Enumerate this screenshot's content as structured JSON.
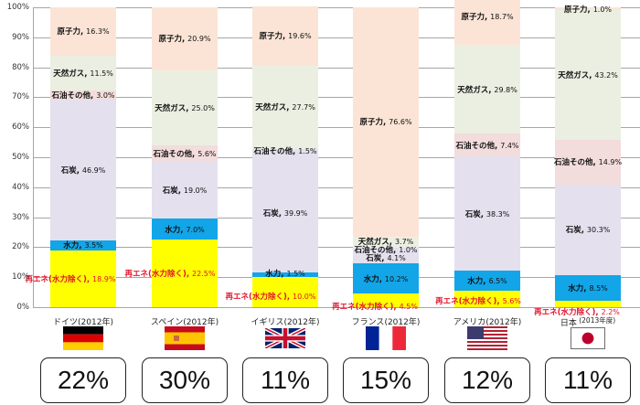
{
  "chart_data": {
    "type": "bar",
    "stacked": true,
    "percent_stacked": true,
    "title": "",
    "xlabel": "",
    "ylabel": "",
    "ylim": [
      0,
      100
    ],
    "yticks": [
      "0%",
      "10%",
      "20%",
      "30%",
      "40%",
      "50%",
      "60%",
      "70%",
      "80%",
      "90%",
      "100%"
    ],
    "grid": true,
    "legend": "none (data labels on segments)",
    "categories": [
      "ドイツ(2012年)",
      "スペイン(2012年)",
      "イギリス(2012年)",
      "フランス(2012年)",
      "アメリカ(2012年)",
      "日本(2013年度)"
    ],
    "series": [
      {
        "name": "再エネ(水力除く)",
        "color": "#ffff00",
        "label_color": "#e2142a",
        "values": [
          18.9,
          22.5,
          10.0,
          4.5,
          5.6,
          2.2
        ]
      },
      {
        "name": "水力",
        "color": "#12a5e8",
        "values": [
          3.5,
          7.0,
          1.5,
          10.2,
          6.5,
          8.5
        ]
      },
      {
        "name": "石炭",
        "color": "#e4e0ee",
        "values": [
          46.9,
          19.0,
          39.9,
          4.1,
          38.3,
          30.3
        ]
      },
      {
        "name": "石油その他",
        "color_by_country": [
          "#f3dcdc",
          "#f3dcdc",
          "#e4e0ee",
          "#e4e0ee",
          "#f3dcdc",
          "#f3dcdc"
        ],
        "values": [
          3.0,
          5.6,
          1.5,
          1.0,
          7.4,
          14.9
        ]
      },
      {
        "name": "天然ガス",
        "color": "#ebefe2",
        "values": [
          11.5,
          25.0,
          27.7,
          3.7,
          29.8,
          43.2
        ]
      },
      {
        "name": "原子力",
        "color": "#fbe4d6",
        "values": [
          16.3,
          20.9,
          19.6,
          76.6,
          18.7,
          1.0
        ]
      }
    ],
    "renewable_share_totals": [
      "22%",
      "30%",
      "11%",
      "15%",
      "12%",
      "11%"
    ]
  },
  "axis": {
    "ticks": [
      "0%",
      "10%",
      "20%",
      "30%",
      "40%",
      "50%",
      "60%",
      "70%",
      "80%",
      "90%",
      "100%"
    ]
  },
  "countries": [
    {
      "name": "ドイツ",
      "year": "(2012年)",
      "flag": "germany-flag",
      "total": "22%"
    },
    {
      "name": "スペイン",
      "year": "(2012年)",
      "flag": "spain-flag",
      "total": "30%"
    },
    {
      "name": "イギリス",
      "year": "(2012年)",
      "flag": "uk-flag",
      "total": "11%"
    },
    {
      "name": "フランス",
      "year": "(2012年)",
      "flag": "france-flag",
      "total": "15%"
    },
    {
      "name": "アメリカ",
      "year": "(2012年)",
      "flag": "usa-flag",
      "total": "12%"
    },
    {
      "name": "日本",
      "year": "(2013年度)",
      "flag": "japan-flag",
      "total": "11%"
    }
  ],
  "labels": {
    "renewable": "再エネ(水力除く)",
    "hydro": "水力",
    "coal": "石炭",
    "oil": "石油その他",
    "gas": "天然ガス",
    "nuclear": "原子力"
  }
}
